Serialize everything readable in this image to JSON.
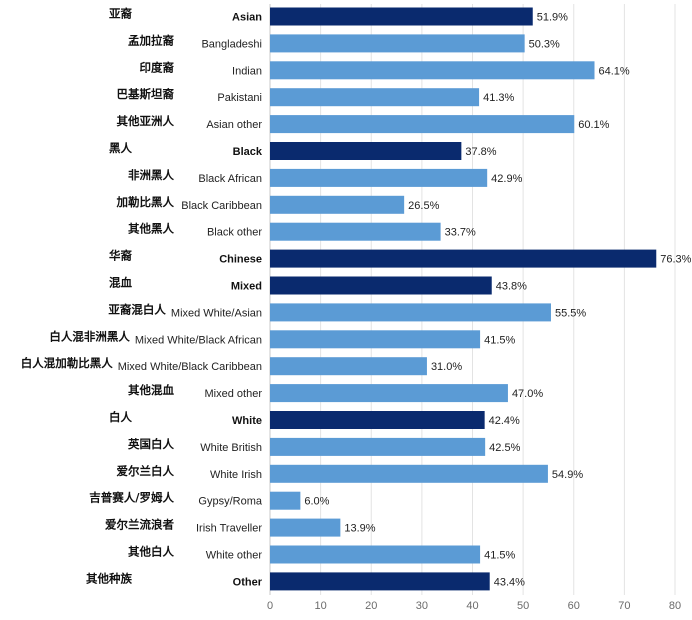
{
  "chart_data": {
    "type": "bar",
    "orientation": "horizontal",
    "title": "",
    "xlabel": "",
    "ylabel": "",
    "xlim": [
      0,
      80
    ],
    "xticks": [
      0,
      10,
      20,
      30,
      40,
      50,
      60,
      70,
      80
    ],
    "grid": true,
    "value_suffix": "%",
    "colors": {
      "group": "#0a2a6e",
      "subgroup": "#5b9bd5"
    },
    "rows": [
      {
        "cn": "亚裔",
        "en": "Asian",
        "value": 51.9,
        "group": true
      },
      {
        "cn": "孟加拉裔",
        "en": "Bangladeshi",
        "value": 50.3,
        "group": false
      },
      {
        "cn": "印度裔",
        "en": "Indian",
        "value": 64.1,
        "group": false
      },
      {
        "cn": "巴基斯坦裔",
        "en": "Pakistani",
        "value": 41.3,
        "group": false
      },
      {
        "cn": "其他亚洲人",
        "en": "Asian other",
        "value": 60.1,
        "group": false
      },
      {
        "cn": "黑人",
        "en": "Black",
        "value": 37.8,
        "group": true
      },
      {
        "cn": "非洲黑人",
        "en": "Black African",
        "value": 42.9,
        "group": false
      },
      {
        "cn": "加勒比黑人",
        "en": "Black Caribbean",
        "value": 26.5,
        "group": false
      },
      {
        "cn": "其他黑人",
        "en": "Black other",
        "value": 33.7,
        "group": false
      },
      {
        "cn": "华裔",
        "en": "Chinese",
        "value": 76.3,
        "group": true
      },
      {
        "cn": "混血",
        "en": "Mixed",
        "value": 43.8,
        "group": true
      },
      {
        "cn": "亚裔混白人",
        "en": "Mixed White/Asian",
        "value": 55.5,
        "group": false
      },
      {
        "cn": "白人混非洲黑人",
        "en": "Mixed White/Black African",
        "value": 41.5,
        "group": false
      },
      {
        "cn": "白人混加勒比黑人",
        "en": "Mixed White/Black Caribbean",
        "value": 31.0,
        "group": false
      },
      {
        "cn": "其他混血",
        "en": "Mixed other",
        "value": 47.0,
        "group": false
      },
      {
        "cn": "白人",
        "en": "White",
        "value": 42.4,
        "group": true
      },
      {
        "cn": "英国白人",
        "en": "White British",
        "value": 42.5,
        "group": false
      },
      {
        "cn": "爱尔兰白人",
        "en": "White Irish",
        "value": 54.9,
        "group": false
      },
      {
        "cn": "吉普赛人/罗姆人",
        "en": "Gypsy/Roma",
        "value": 6.0,
        "group": false
      },
      {
        "cn": "爱尔兰流浪者",
        "en": "Irish Traveller",
        "value": 13.9,
        "group": false
      },
      {
        "cn": "其他白人",
        "en": "White other",
        "value": 41.5,
        "group": false
      },
      {
        "cn": "其他种族",
        "en": "Other",
        "value": 43.4,
        "group": true
      }
    ]
  }
}
